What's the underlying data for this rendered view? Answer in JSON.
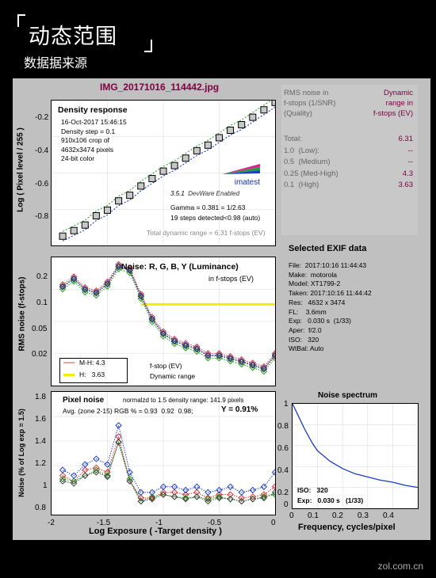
{
  "header": {
    "title": "动态范围",
    "subtitle": "数据据来源"
  },
  "file_title": "IMG_20171016_114442.jpg",
  "density": {
    "heading": "Density response",
    "lines": [
      "16-Oct-2017 15:46:15",
      "Density step = 0.1",
      "910x106 crop of",
      "4632x3474 pixels",
      "24-bit color"
    ],
    "logo": "imatest",
    "version": "3.5.1",
    "dware": "DevWare Enabled",
    "gamma": "Gamma = 0.381 = 1/2.63",
    "steps": "19 steps detected<0.98 (auto)",
    "total_dr": "Total dynamic range = 6.31 f-stops (EV)",
    "ylabel": "Log ( Pixel level / 255 )",
    "yticks": [
      "-0.2",
      "-0.4",
      "-0.6",
      "-0.8"
    ]
  },
  "noise": {
    "heading": "Noise: R, G, B, Y (Luminance)",
    "sub": "in f-stops (EV)",
    "ylabel": "RMS noise (f-stops)",
    "yticks": [
      "0.2",
      "0.1",
      "0.05",
      "0.02"
    ],
    "legend": {
      "mh": "M-H: 4.3",
      "h": "H:   3.63",
      "fstop": "f-stop (EV)",
      "dyn": "Dynamic range"
    }
  },
  "pixel": {
    "heading": "Pixel noise",
    "norm": "normalzd to 1.5 density range: 141.9 pixels",
    "avg": "Avg. (zone 2-15) RGB % = 0.93  0.92  0.98;",
    "y": "Y = 0.91%",
    "ylabel": "Noise (% of Log exp = 1.5)",
    "yticks": [
      "1.8",
      "1.6",
      "1.4",
      "1.2",
      "1",
      "0.8"
    ],
    "xticks": [
      "-2",
      "-1.5",
      "-1",
      "-0.5",
      "0"
    ],
    "xlabel": "Log Exposure ( -Target density )"
  },
  "spectrum": {
    "heading": "Noise spectrum",
    "iso": "ISO:   320",
    "exp": "Exp:   0.030 s   (1/33)",
    "yticks": [
      "1",
      "0.8",
      "0.6",
      "0.4",
      "0.2",
      "0"
    ],
    "xticks": [
      "0",
      "0.1",
      "0.2",
      "0.3",
      "0.4"
    ],
    "xlabel": "Frequency, cycles/pixel"
  },
  "info": {
    "h1": "RMS noise in",
    "h2": "f-stops (1/SNR)",
    "h3": "(Quality)",
    "h1r": "Dynamic",
    "h2r": "range in",
    "h3r": "f-stops (EV)",
    "rows": [
      {
        "label": "Total:",
        "value": "6.31"
      },
      {
        "label": "1.0  (Low):",
        "value": "--"
      },
      {
        "label": "0.5  (Medium)",
        "value": "--"
      },
      {
        "label": "0.25 (Med-High)",
        "value": "4.3"
      },
      {
        "label": "0.1  (High)",
        "value": "3.63"
      }
    ]
  },
  "exif": {
    "title": "Selected EXIF data",
    "rows": [
      "File:  2017:10:16 11:44:43",
      "Make:  motorola",
      "Model: XT1799-2",
      "Taken: 2017:10:16 11:44:42",
      "Res:   4632 x 3474",
      "FL:    3.6mm",
      "Exp:   0.030 s  (1/33)",
      "Aper:  f/2.0",
      "ISO:   320",
      "WtBal: Auto"
    ]
  },
  "watermark": "zol.com.cn",
  "chart_data": [
    {
      "type": "line",
      "title": "Density response",
      "xlabel": "",
      "ylabel": "Log ( Pixel level / 255 )",
      "x": [
        -1.9,
        -1.8,
        -1.7,
        -1.6,
        -1.5,
        -1.4,
        -1.3,
        -1.2,
        -1.1,
        -1.0,
        -0.9,
        -0.8,
        -0.7,
        -0.6,
        -0.5,
        -0.4,
        -0.3,
        -0.2,
        -0.1,
        0.0
      ],
      "series": [
        {
          "values": [
            -0.83,
            -0.8,
            -0.77,
            -0.72,
            -0.69,
            -0.64,
            -0.61,
            -0.56,
            -0.52,
            -0.48,
            -0.45,
            -0.41,
            -0.37,
            -0.34,
            -0.3,
            -0.26,
            -0.23,
            -0.19,
            -0.15,
            -0.11
          ]
        }
      ],
      "xlim": [
        -2,
        0
      ],
      "ylim": [
        -0.88,
        -0.1
      ]
    },
    {
      "type": "line",
      "title": "Noise: R, G, B, Y (Luminance)",
      "ylabel": "RMS noise (f-stops)",
      "x": [
        -1.9,
        -1.8,
        -1.7,
        -1.6,
        -1.5,
        -1.4,
        -1.3,
        -1.2,
        -1.1,
        -1.0,
        -0.9,
        -0.8,
        -0.7,
        -0.6,
        -0.5,
        -0.4,
        -0.3,
        -0.2,
        -0.1,
        0.0
      ],
      "series": [
        {
          "name": "Y",
          "values": [
            0.15,
            0.18,
            0.14,
            0.13,
            0.16,
            0.24,
            0.22,
            0.12,
            0.07,
            0.05,
            0.042,
            0.038,
            0.035,
            0.03,
            0.03,
            0.028,
            0.026,
            0.024,
            0.022,
            0.03
          ]
        }
      ],
      "ylim": [
        0.015,
        0.3
      ],
      "scale": "log"
    },
    {
      "type": "line",
      "title": "Pixel noise",
      "xlabel": "Log Exposure ( -Target density )",
      "ylabel": "Noise (% of Log exp = 1.5)",
      "x": [
        -1.9,
        -1.8,
        -1.7,
        -1.6,
        -1.5,
        -1.4,
        -1.3,
        -1.2,
        -1.1,
        -1.0,
        -0.9,
        -0.8,
        -0.7,
        -0.6,
        -0.5,
        -0.4,
        -0.3,
        -0.2,
        -0.1,
        0.0
      ],
      "series": [
        {
          "name": "R",
          "values": [
            1.05,
            1.0,
            1.1,
            1.12,
            1.08,
            1.4,
            1.0,
            0.85,
            0.85,
            0.9,
            0.9,
            0.88,
            0.9,
            0.85,
            0.88,
            0.88,
            0.85,
            0.86,
            0.88,
            0.95
          ]
        },
        {
          "name": "G",
          "values": [
            1.02,
            1.0,
            1.05,
            1.1,
            1.05,
            1.35,
            1.02,
            0.82,
            0.86,
            0.88,
            0.86,
            0.85,
            0.86,
            0.84,
            0.86,
            0.84,
            0.82,
            0.84,
            0.86,
            0.88
          ]
        },
        {
          "name": "B",
          "values": [
            1.1,
            1.05,
            1.15,
            1.2,
            1.15,
            1.5,
            1.08,
            0.9,
            0.9,
            0.95,
            0.95,
            0.92,
            0.95,
            0.9,
            0.92,
            0.95,
            0.9,
            0.92,
            0.95,
            1.08
          ]
        },
        {
          "name": "Y",
          "values": [
            1.0,
            0.98,
            1.05,
            1.08,
            1.04,
            1.35,
            1.0,
            0.82,
            0.84,
            0.88,
            0.86,
            0.84,
            0.86,
            0.82,
            0.85,
            0.84,
            0.82,
            0.84,
            0.85,
            0.9
          ]
        }
      ],
      "xlim": [
        -2,
        0
      ],
      "ylim": [
        0.7,
        1.8
      ]
    },
    {
      "type": "line",
      "title": "Noise spectrum",
      "xlabel": "Frequency, cycles/pixel",
      "x": [
        0,
        0.02,
        0.05,
        0.08,
        0.1,
        0.15,
        0.2,
        0.25,
        0.3,
        0.35,
        0.4,
        0.45,
        0.5
      ],
      "series": [
        {
          "values": [
            1.0,
            0.9,
            0.75,
            0.62,
            0.55,
            0.45,
            0.38,
            0.33,
            0.3,
            0.27,
            0.25,
            0.22,
            0.2
          ]
        }
      ],
      "xlim": [
        0,
        0.5
      ],
      "ylim": [
        0,
        1
      ]
    }
  ]
}
